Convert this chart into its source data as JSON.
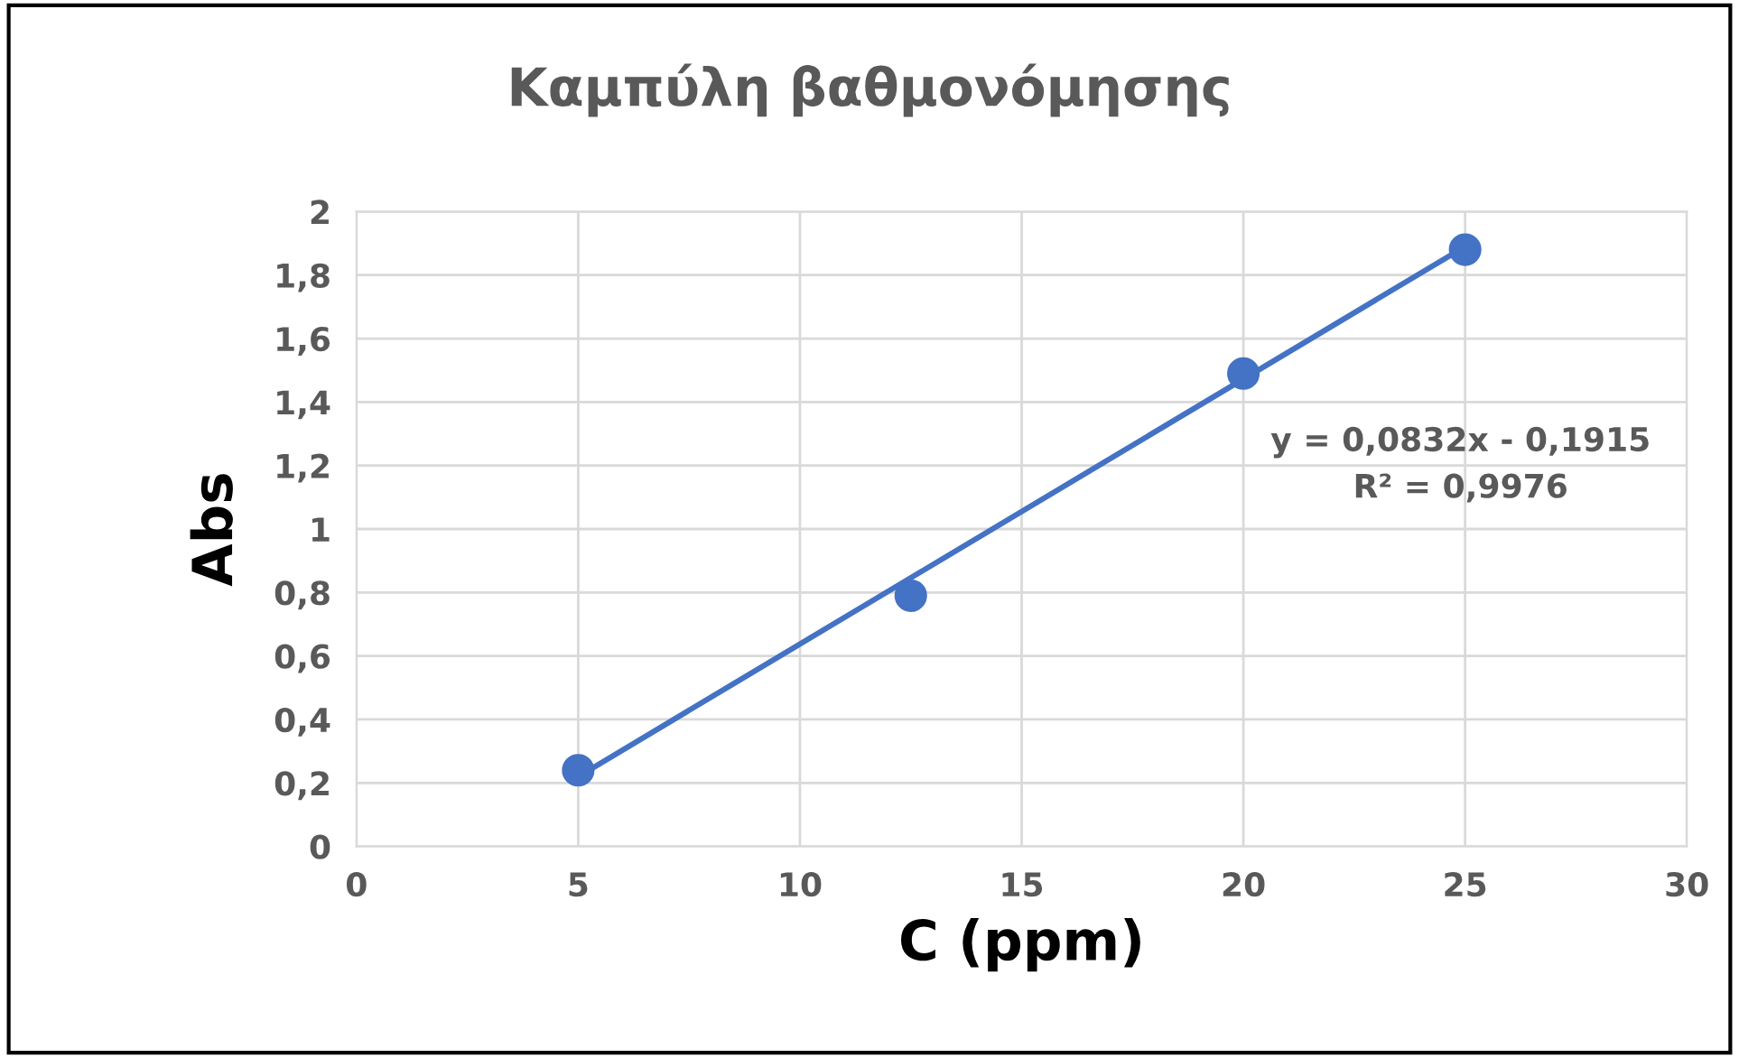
{
  "chart_data": {
    "type": "scatter",
    "title": "Καμπύλη βαθμονόμησης",
    "xlabel": "C (ppm)",
    "ylabel": "Abs",
    "series": [
      {
        "color": "#4472c4",
        "marker": "circle",
        "x": [
          5,
          12.5,
          20,
          25
        ],
        "values": [
          0.24,
          0.79,
          1.49,
          1.88
        ]
      },
      {
        "type": "line",
        "color": "#4472c4",
        "line_style": "solid",
        "x": [
          5,
          25
        ],
        "values": [
          0.22,
          1.89
        ]
      }
    ],
    "annotations": [
      "y = 0,0832x - 0,1915\nR² = 0,9976"
    ],
    "xlim": [
      0,
      30
    ],
    "xticks": [
      0,
      5,
      10,
      15,
      20,
      25,
      30
    ],
    "ylim": [
      0,
      2
    ],
    "yticks": [
      0,
      {
        "value": 0.2,
        "label": "0,2"
      },
      {
        "value": 0.4,
        "label": "0,4"
      },
      {
        "value": 0.6,
        "label": "0,6"
      },
      {
        "value": 0.8,
        "label": "0,8"
      },
      1,
      {
        "value": 1.2,
        "label": "1,2"
      },
      {
        "value": 1.4,
        "label": "1,4"
      },
      {
        "value": 1.6,
        "label": "1,6"
      },
      {
        "value": 1.8,
        "label": "1,8"
      },
      2
    ],
    "grid": true,
    "legend": false
  }
}
